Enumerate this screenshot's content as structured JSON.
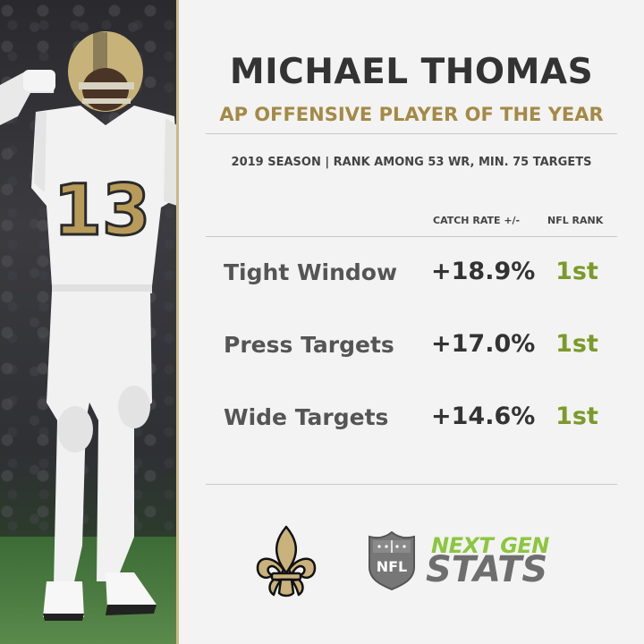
{
  "player": {
    "name": "MICHAEL THOMAS",
    "award": "AP OFFENSIVE PLAYER OF THE YEAR",
    "context": "2019 SEASON  |  RANK AMONG 53 WR, MIN. 75 TARGETS",
    "jersey_number": "13"
  },
  "table": {
    "headers": {
      "stat": "CATCH RATE +/-",
      "rank": "NFL RANK"
    },
    "rows": [
      {
        "label": "Tight Window",
        "value": "+18.9%",
        "rank": "1st"
      },
      {
        "label": "Press Targets",
        "value": "+17.0%",
        "rank": "1st"
      },
      {
        "label": "Wide Targets",
        "value": "+14.6%",
        "rank": "1st"
      }
    ]
  },
  "branding": {
    "team_logo": "fleur-de-lis-icon",
    "league_logo": "nfl-shield-icon",
    "product_line1": "NEXT GEN",
    "product_line2": "STATS",
    "nfl_text": "NFL"
  },
  "colors": {
    "gold": "#a48a46",
    "rank_green": "#7c9a2a",
    "ngs_green": "#8cc63f",
    "text_dark": "#333333"
  }
}
